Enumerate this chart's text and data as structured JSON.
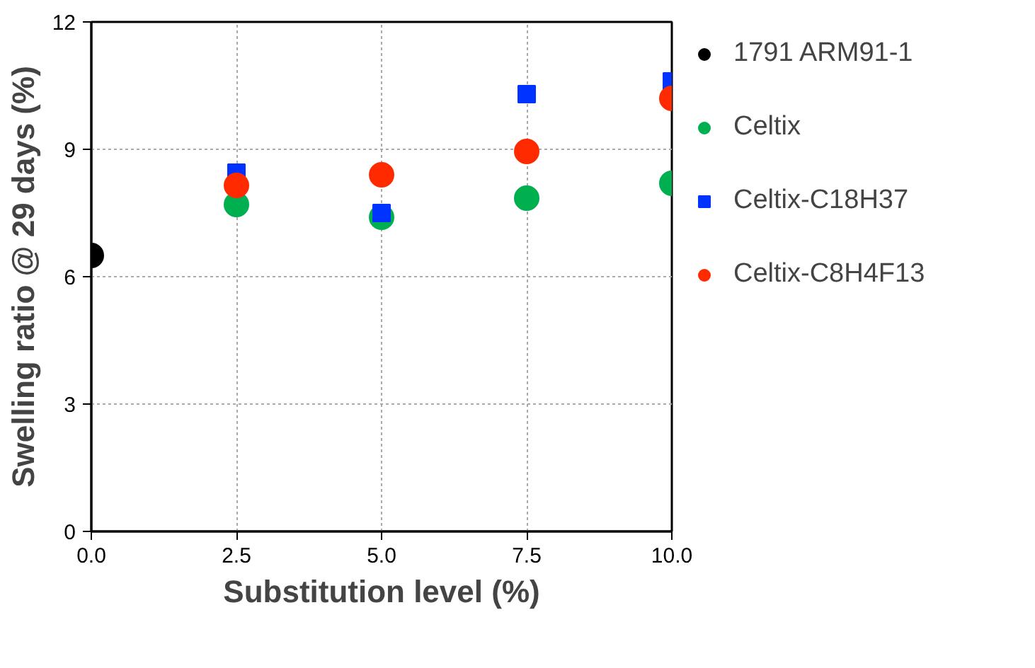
{
  "chart_data": {
    "type": "scatter",
    "xlabel": "Substitution level (%)",
    "ylabel": "Swelling ratio @ 29 days (%)",
    "xlim": [
      0,
      10
    ],
    "xticks": [
      {
        "value": 0,
        "label": "0.0"
      },
      2.5,
      {
        "value": 5,
        "label": "5.0"
      },
      7.5,
      {
        "value": 10,
        "label": "10.0"
      }
    ],
    "ylim": [
      0,
      12
    ],
    "yticks": [
      0,
      3,
      6,
      9,
      12
    ],
    "grid": true,
    "legend": "right",
    "series": [
      {
        "name": "1791 ARM91-1",
        "color": "#000000",
        "marker": "circle",
        "x": [
          0
        ],
        "values": [
          6.5
        ]
      },
      {
        "name": "Celtix",
        "color": "#00b050",
        "marker": "circle",
        "x": [
          2.5,
          5,
          7.5,
          10
        ],
        "values": [
          7.7,
          7.4,
          7.85,
          8.2
        ]
      },
      {
        "name": "Celtix-C18H37",
        "color": "#0033ff",
        "marker": "square",
        "x": [
          2.5,
          5,
          7.5,
          10
        ],
        "values": [
          8.45,
          7.5,
          10.3,
          10.6
        ]
      },
      {
        "name": "Celtix-C8H4F13",
        "color": "#ff2a00",
        "marker": "circle",
        "x": [
          2.5,
          5,
          7.5,
          10
        ],
        "values": [
          8.15,
          8.4,
          8.95,
          10.2
        ]
      }
    ]
  }
}
